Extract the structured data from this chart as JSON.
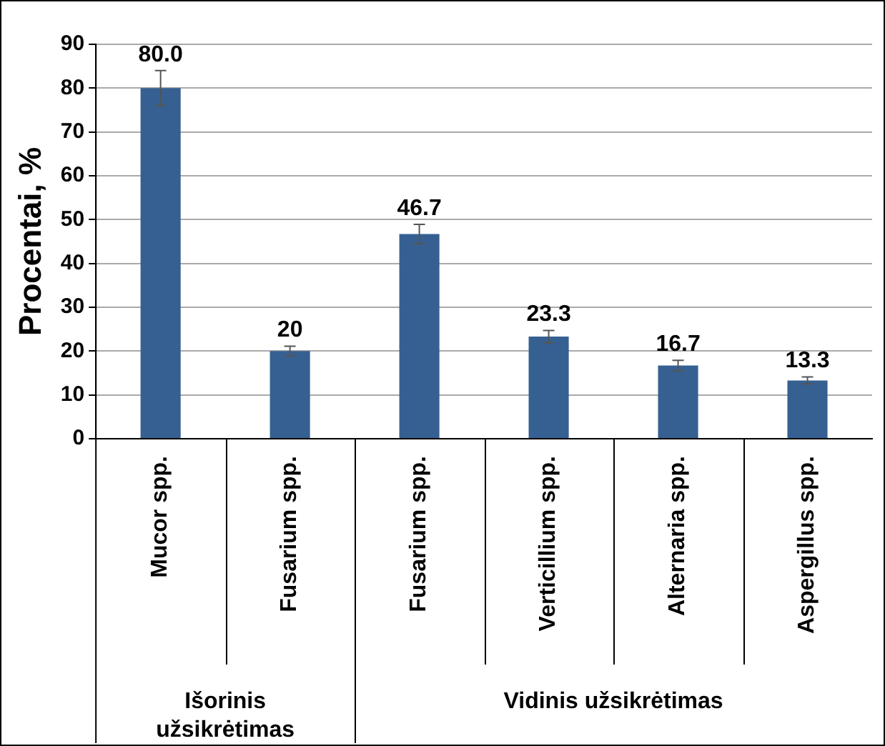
{
  "chart_data": {
    "type": "bar",
    "ylabel": "Procentai, %",
    "categories": [
      "Mucor spp.",
      "Fusarium spp.",
      "Fusarium spp.",
      "Verticillium spp.",
      "Alternaria spp.",
      "Aspergillus spp."
    ],
    "values": [
      80.0,
      20,
      46.7,
      23.3,
      16.7,
      13.3
    ],
    "errors": [
      4,
      1.1,
      2.2,
      1.4,
      1.2,
      0.8
    ],
    "value_labels": [
      "80.0",
      "20",
      "46.7",
      "23.3",
      "16.7",
      "13.3"
    ],
    "color": "#366092",
    "ylim": [
      0,
      90
    ],
    "yticks": [
      0,
      10,
      20,
      30,
      40,
      50,
      60,
      70,
      80,
      90
    ],
    "grid": "y",
    "annotations": [
      "Išorinis užsikrėtimas",
      "Vidinis užsikrėtimas"
    ]
  }
}
